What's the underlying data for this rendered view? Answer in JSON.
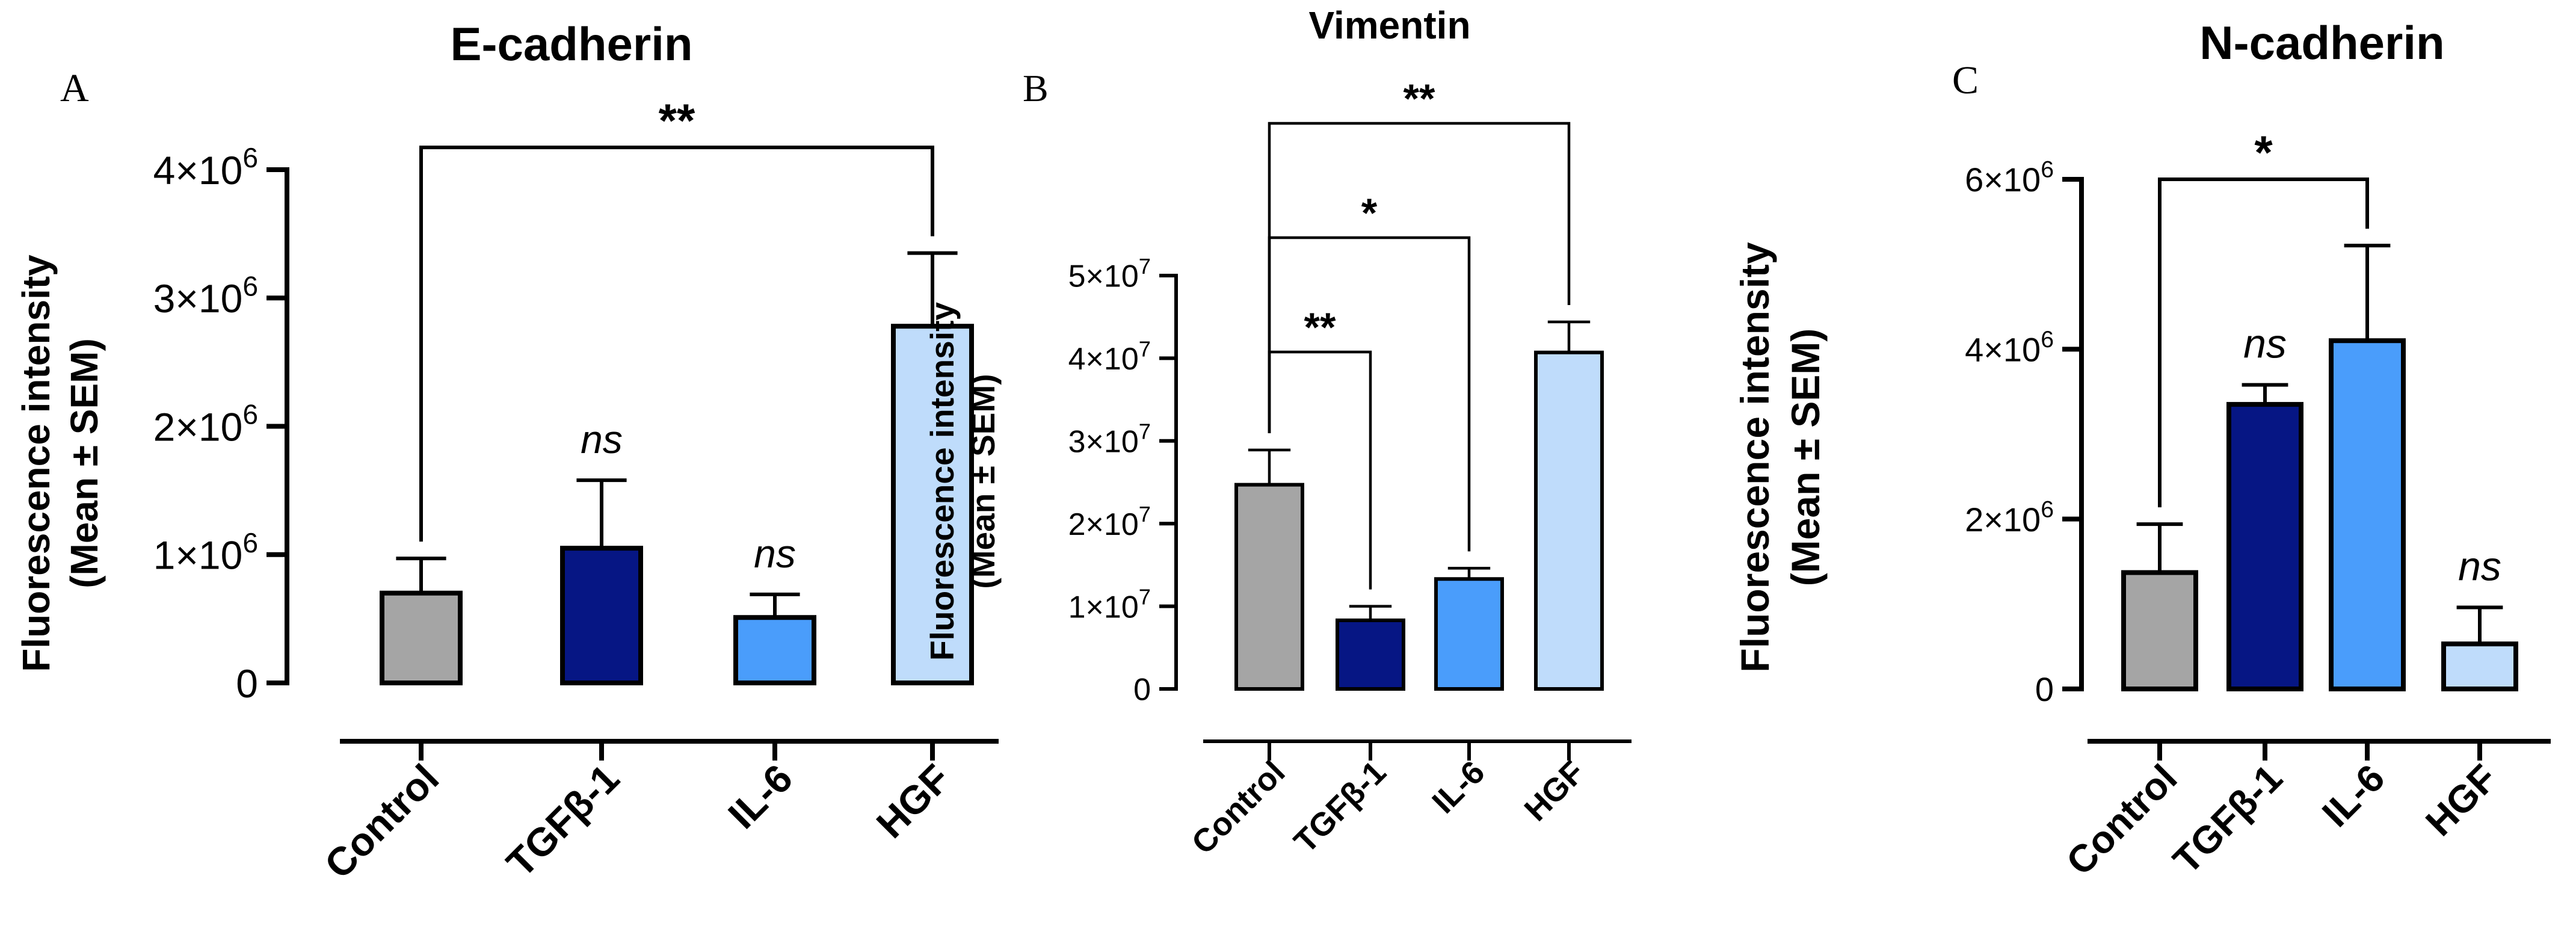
{
  "chart_data": [
    {
      "type": "bar",
      "panel": "A",
      "title": "E-cadherin",
      "ylabel": [
        "Fluorescence intensity",
        "(Mean ± SEM)"
      ],
      "categories": [
        "Control",
        "TGFβ-1",
        "IL-6",
        "HGF"
      ],
      "values": [
        700000,
        1050000,
        510000,
        2780000
      ],
      "errors": [
        270000,
        530000,
        180000,
        570000
      ],
      "colors": [
        "#a5a5a5",
        "#061684",
        "#4a9dfb",
        "#bfdcfb"
      ],
      "ylim": [
        0,
        4000000
      ],
      "yticks": [
        0,
        1000000,
        2000000,
        3000000,
        4000000
      ],
      "ytick_labels": [
        {
          "mant": "0",
          "exp": ""
        },
        {
          "mant": "1×10",
          "exp": "6"
        },
        {
          "mant": "2×10",
          "exp": "6"
        },
        {
          "mant": "3×10",
          "exp": "6"
        },
        {
          "mant": "4×10",
          "exp": "6"
        }
      ],
      "significance": [
        {
          "from": 0,
          "to": 3,
          "label": "**"
        }
      ],
      "bar_labels": [
        {
          "index": 1,
          "label": "ns"
        },
        {
          "index": 2,
          "label": "ns"
        }
      ]
    },
    {
      "type": "bar",
      "panel": "B",
      "title": "Vimentin",
      "ylabel": [
        "Fluorescence intensity",
        "(Mean ± SEM)"
      ],
      "categories": [
        "Control",
        "TGFβ-1",
        "IL-6",
        "HGF"
      ],
      "values": [
        24700000,
        8300000,
        13300000,
        40700000
      ],
      "errors": [
        4200000,
        1700000,
        1300000,
        3700000
      ],
      "colors": [
        "#a5a5a5",
        "#061684",
        "#4a9dfb",
        "#bfdcfb"
      ],
      "ylim": [
        0,
        50000000
      ],
      "yticks": [
        0,
        10000000,
        20000000,
        30000000,
        40000000,
        50000000
      ],
      "ytick_labels": [
        {
          "mant": "0",
          "exp": ""
        },
        {
          "mant": "1×10",
          "exp": "7"
        },
        {
          "mant": "2×10",
          "exp": "7"
        },
        {
          "mant": "3×10",
          "exp": "7"
        },
        {
          "mant": "4×10",
          "exp": "7"
        },
        {
          "mant": "5×10",
          "exp": "7"
        }
      ],
      "significance": [
        {
          "from": 0,
          "to": 1,
          "label": "**"
        },
        {
          "from": 0,
          "to": 2,
          "label": "*"
        },
        {
          "from": 0,
          "to": 3,
          "label": "**"
        }
      ],
      "bar_labels": []
    },
    {
      "type": "bar",
      "panel": "C",
      "title": "N-cadherin",
      "ylabel": [
        "Fluorescence intensity",
        "(Mean ± SEM)"
      ],
      "categories": [
        "Control",
        "TGFβ-1",
        "IL-6",
        "HGF"
      ],
      "values": [
        1370000,
        3350000,
        4100000,
        530000
      ],
      "errors": [
        570000,
        230000,
        1120000,
        430000
      ],
      "colors": [
        "#a5a5a5",
        "#061684",
        "#4a9dfb",
        "#bfdcfb"
      ],
      "ylim": [
        0,
        6000000
      ],
      "yticks": [
        0,
        2000000,
        4000000,
        6000000
      ],
      "ytick_labels": [
        {
          "mant": "0",
          "exp": ""
        },
        {
          "mant": "2×10",
          "exp": "6"
        },
        {
          "mant": "4×10",
          "exp": "6"
        },
        {
          "mant": "6×10",
          "exp": "6"
        }
      ],
      "significance": [
        {
          "from": 0,
          "to": 2,
          "label": "*"
        }
      ],
      "bar_labels": [
        {
          "index": 1,
          "label": "ns"
        },
        {
          "index": 3,
          "label": "ns"
        }
      ]
    }
  ]
}
